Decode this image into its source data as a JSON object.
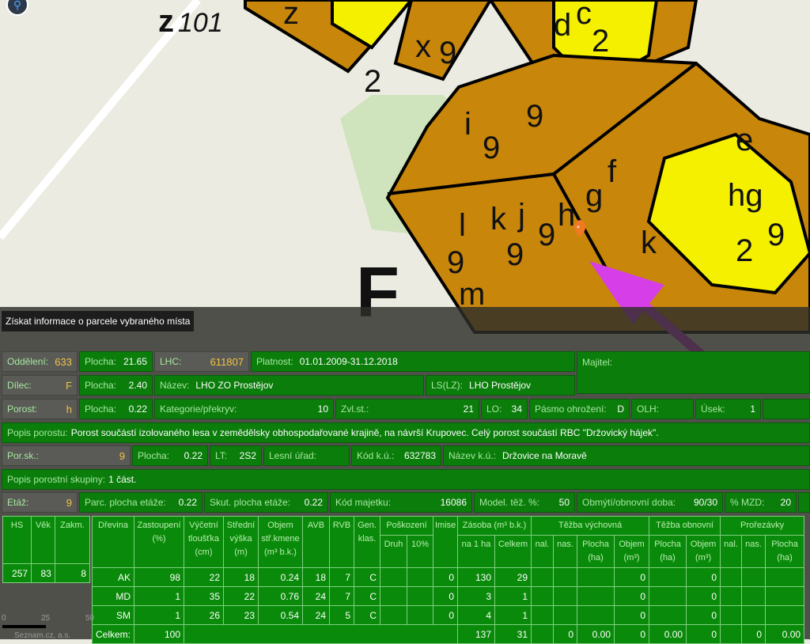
{
  "map": {
    "labels": [
      "z",
      "101",
      "z",
      "x",
      "2",
      "9",
      "x",
      "9",
      "2",
      "d",
      "c",
      "2",
      "i",
      "9",
      "9",
      "e",
      "f",
      "g",
      "h",
      "j",
      "k",
      "l",
      "9",
      "9",
      "9",
      "m",
      "k",
      "f",
      "g",
      "2",
      "hg",
      "e",
      "2",
      "9",
      "F"
    ],
    "marker_color": "#ee7a22",
    "arrow_color": "#d63ee8",
    "forest_color": "#c8860a",
    "young_color": "#f5f000"
  },
  "tooltip": "Získat informace o parcele vybraného místa",
  "info": {
    "oddeleni": {
      "label": "Oddělení:",
      "value": "633"
    },
    "plocha1": {
      "label": "Plocha:",
      "value": "21.65"
    },
    "lhc": {
      "label": "LHC:",
      "value": "611807"
    },
    "platnost": {
      "label": "Platnost:",
      "value": "01.01.2009-31.12.2018"
    },
    "majitel": {
      "label": "Majitel:"
    },
    "dilec": {
      "label": "Dílec:",
      "value": "F"
    },
    "plocha2": {
      "label": "Plocha:",
      "value": "2.40"
    },
    "nazev": {
      "label": "Název:",
      "value": "LHO ZO Prostějov"
    },
    "ls": {
      "label": "LS(LZ):",
      "value": "LHO Prostějov"
    },
    "porost": {
      "label": "Porost:",
      "value": "h"
    },
    "plocha3": {
      "label": "Plocha:",
      "value": "0.22"
    },
    "kategorie": {
      "label": "Kategorie/překryv:",
      "value": "10"
    },
    "zvlst": {
      "label": "Zvl.st.:",
      "value": "21"
    },
    "lo": {
      "label": "LO:",
      "value": "34"
    },
    "pasmo": {
      "label": "Pásmo ohrožení:",
      "value": "D"
    },
    "olh": {
      "label": "OLH:"
    },
    "usek": {
      "label": "Úsek:",
      "value": "1"
    },
    "popis_porostu": {
      "label": "Popis porostu:",
      "value": "Porost součástí izolovaného lesa v zemědělsky obhospodařované krajině, na návrší Krupovec. Celý porost součástí RBC \"Držovický hájek\"."
    },
    "porsk": {
      "label": "Por.sk.:",
      "value": "9"
    },
    "plocha4": {
      "label": "Plocha:",
      "value": "0.22"
    },
    "lt": {
      "label": "LT:",
      "value": "2S2"
    },
    "lesni_urad": {
      "label": "Lesní úřad:"
    },
    "kod_ku": {
      "label": "Kód k.ú.:",
      "value": "632783"
    },
    "nazev_ku": {
      "label": "Název k.ú.:",
      "value": "Držovice na Moravě"
    },
    "popis_skupiny": {
      "label": "Popis porostní skupiny:",
      "value": "1 část."
    },
    "etaz": {
      "label": "Etáž:",
      "value": "9"
    },
    "parc_plocha": {
      "label": "Parc. plocha etáže:",
      "value": "0.22"
    },
    "skut_plocha": {
      "label": "Skut. plocha etáže:",
      "value": "0.22"
    },
    "kod_majetku": {
      "label": "Kód majetku:",
      "value": "16086"
    },
    "model_tez": {
      "label": "Model. těž. %:",
      "value": "50"
    },
    "obmyti": {
      "label": "Obmýtí/obnovní doba:",
      "value": "90/30"
    },
    "mzd": {
      "label": "% MZD:",
      "value": "20"
    }
  },
  "stand_table": {
    "headers": [
      "HS",
      "Věk",
      "Zakm."
    ],
    "row": [
      "257",
      "83",
      "8"
    ]
  },
  "species_table": {
    "group_headers": {
      "poskozeni": "Poškození",
      "zasoba": "Zásoba (m³ b.k.)",
      "tezba_vychovna": "Těžba výchovná",
      "tezba_obnovni": "Těžba obnovní",
      "prorezavky": "Prořezávky"
    },
    "headers": {
      "drevina": "Dřevina",
      "zastoupeni": "Zastoupení (%)",
      "vycetni": "Výčetní tloušťka (cm)",
      "stredni": "Střední výška (m)",
      "objem_kmene": "Objem stř.kmene (m³ b.k.)",
      "avb": "AVB",
      "rvb": "RVB",
      "gen": "Gen. klas.",
      "druh": "Druh",
      "p10": "10%",
      "imise": "Imise",
      "na1ha": "na 1 ha",
      "celkem": "Celkem",
      "nal": "nal.",
      "nas": "nas.",
      "plocha": "Plocha (ha)",
      "objem": "Objem (m³)"
    },
    "rows": [
      [
        "AK",
        "98",
        "22",
        "18",
        "0.24",
        "18",
        "7",
        "C",
        "",
        "",
        "0",
        "130",
        "29",
        "",
        "",
        "",
        "0",
        "",
        "0",
        "",
        "",
        ""
      ],
      [
        "MD",
        "1",
        "35",
        "22",
        "0.76",
        "24",
        "7",
        "C",
        "",
        "",
        "0",
        "3",
        "1",
        "",
        "",
        "",
        "0",
        "",
        "0",
        "",
        "",
        ""
      ],
      [
        "SM",
        "1",
        "26",
        "23",
        "0.54",
        "24",
        "5",
        "C",
        "",
        "",
        "0",
        "4",
        "1",
        "",
        "",
        "",
        "0",
        "",
        "0",
        "",
        "",
        ""
      ]
    ],
    "total": {
      "label": "Celkem:",
      "zastoupeni": "100",
      "na1ha": "137",
      "celkem": "31",
      "tv_nas": "0",
      "tv_plocha": "0.00",
      "tv_objem": "0",
      "to_plocha": "0.00",
      "to_objem": "0",
      "pr_nas": "0",
      "pr_plocha": "0.00"
    }
  },
  "scale": {
    "ticks": [
      "0",
      "25",
      "50"
    ],
    "attribution": "Seznam.cz, a.s."
  }
}
